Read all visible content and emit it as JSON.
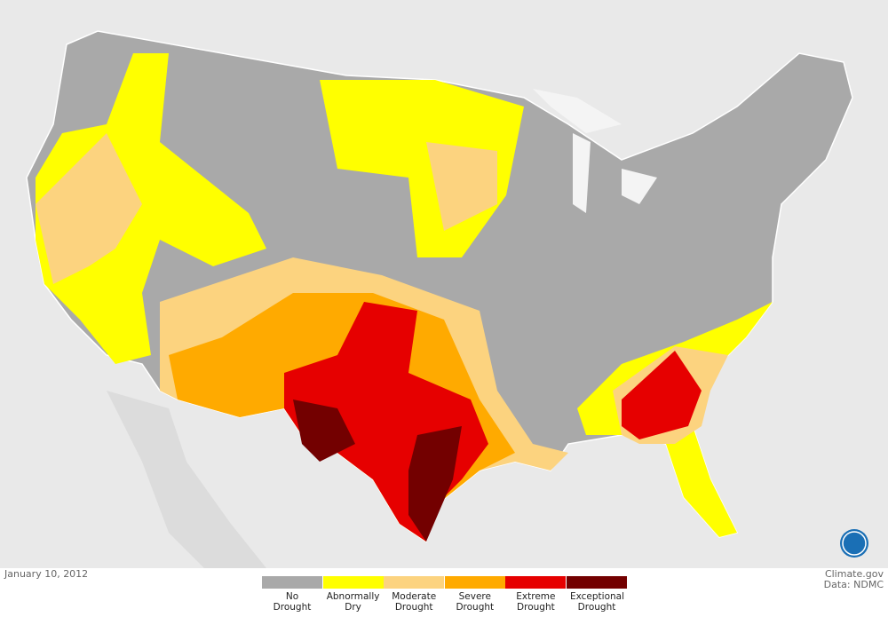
{
  "date": "January 10, 2012",
  "credit": "Climate.gov",
  "source": "Data: NDMC",
  "legend": [
    {
      "label": "No Drought",
      "color": "#a9a9a9"
    },
    {
      "label": "Abnormally Dry",
      "color": "#ffff00"
    },
    {
      "label": "Moderate Drought",
      "color": "#fcd37f"
    },
    {
      "label": "Severe Drought",
      "color": "#ffaa00"
    },
    {
      "label": "Extreme Drought",
      "color": "#e60000"
    },
    {
      "label": "Exceptional Drought",
      "color": "#730000"
    }
  ]
}
